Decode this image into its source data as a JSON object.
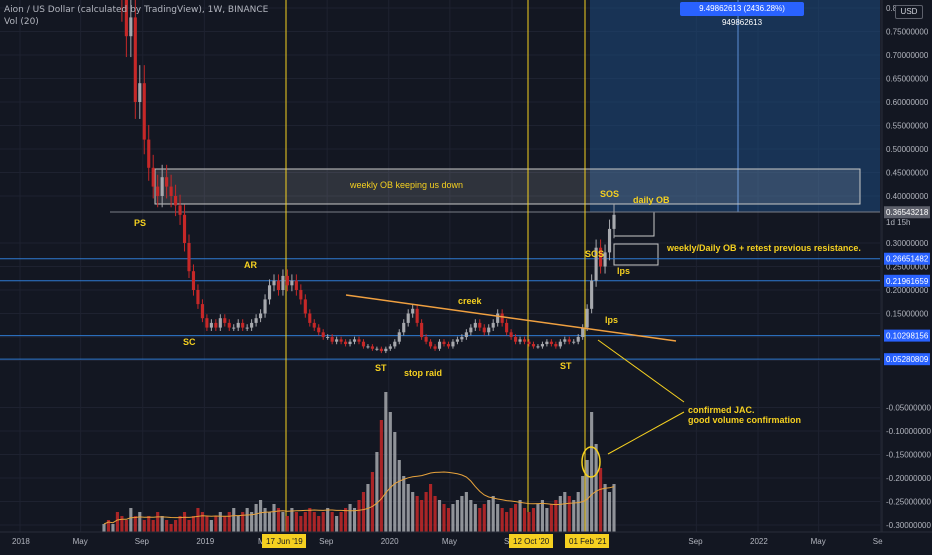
{
  "header": {
    "title": "Aion / US Dollar (calculated by TradingView), 1W, BINANCE",
    "indicator": "Vol (20)",
    "currency_badge": "USD"
  },
  "measure_badge": "9.49862613 (2436.28%) 949862613",
  "colors": {
    "background": "#131722",
    "grid": "#1e2230",
    "up": "#a7a9ae",
    "down": "#c62828",
    "vertical_line": "#f5d020",
    "horizontal_line": "#2e7ad1",
    "trendline": "#f0a040",
    "annotation_text": "#f5d020",
    "zone_fill": "#1e4a80",
    "ma_line": "#e8a33c"
  },
  "chart_data": {
    "type": "candlestick",
    "title": "Aion / US Dollar (calculated by TradingView), 1W, BINANCE",
    "y_axis": {
      "ticks": [
        "0.8",
        "0.75000000",
        "0.70000000",
        "0.65000000",
        "0.60000000",
        "0.55000000",
        "0.50000000",
        "0.45000000",
        "0.40000000",
        "0.30000000",
        "0.25000000",
        "0.20000000",
        "0.15000000",
        "0.10000000",
        "0.05000000",
        "-0.05000000",
        "-0.10000000",
        "-0.15000000",
        "-0.20000000",
        "-0.25000000",
        "-0.30000000"
      ],
      "tick_values": [
        0.8,
        0.75,
        0.7,
        0.65,
        0.6,
        0.55,
        0.5,
        0.45,
        0.4,
        0.3,
        0.25,
        0.2,
        0.15,
        0.1,
        0.05,
        -0.05,
        -0.1,
        -0.15,
        -0.2,
        -0.25,
        -0.3
      ]
    },
    "x_axis": {
      "tick_labels": [
        "2018",
        "May",
        "Sep",
        "2019",
        "Sep",
        "2020",
        "May",
        "Sep",
        "Sep",
        "2022",
        "May",
        "Se"
      ],
      "tick_dates": [
        "2018-01-01",
        "2018-05-01",
        "2018-09-01",
        "2019-01-01",
        "2019-09-01",
        "2020-01-01",
        "2020-05-01",
        "2020-09-01",
        "2021-09-01",
        "2022-01-01",
        "2022-05-01",
        "2022-09-01"
      ],
      "partial_labels": [
        "May"
      ],
      "highlighted_dates": [
        "17 Jun '19",
        "12 Oct '20",
        "01 Feb '21"
      ]
    },
    "price_labels": [
      "0.36543218",
      "0.26651482",
      "0.21961659",
      "0.10298156",
      "0.05280809"
    ],
    "price_label_values": [
      0.36543218,
      0.26651482,
      0.21961659,
      0.10298156,
      0.05280809
    ],
    "countdown": "1d 15h",
    "price_series": [
      0.98,
      0.92,
      0.94,
      0.88,
      0.82,
      0.74,
      0.78,
      0.6,
      0.64,
      0.52,
      0.46,
      0.42,
      0.4,
      0.44,
      0.42,
      0.4,
      0.38,
      0.36,
      0.3,
      0.24,
      0.2,
      0.17,
      0.14,
      0.12,
      0.13,
      0.12,
      0.14,
      0.13,
      0.12,
      0.12,
      0.13,
      0.12,
      0.12,
      0.13,
      0.14,
      0.15,
      0.18,
      0.21,
      0.22,
      0.2,
      0.23,
      0.21,
      0.22,
      0.2,
      0.18,
      0.15,
      0.13,
      0.12,
      0.11,
      0.1,
      0.1,
      0.09,
      0.095,
      0.09,
      0.085,
      0.09,
      0.095,
      0.09,
      0.08,
      0.08,
      0.075,
      0.075,
      0.07,
      0.075,
      0.08,
      0.09,
      0.11,
      0.13,
      0.15,
      0.16,
      0.13,
      0.1,
      0.09,
      0.08,
      0.075,
      0.09,
      0.085,
      0.08,
      0.09,
      0.095,
      0.1,
      0.11,
      0.12,
      0.13,
      0.12,
      0.11,
      0.12,
      0.13,
      0.15,
      0.13,
      0.11,
      0.1,
      0.09,
      0.095,
      0.09,
      0.085,
      0.08,
      0.08,
      0.085,
      0.09,
      0.085,
      0.08,
      0.09,
      0.095,
      0.09,
      0.09,
      0.1,
      0.12,
      0.16,
      0.22,
      0.29,
      0.25,
      0.28,
      0.33,
      0.36
    ],
    "volume_series": [
      0.02,
      0.03,
      0.02,
      0.05,
      0.04,
      0.03,
      0.06,
      0.04,
      0.05,
      0.03,
      0.04,
      0.03,
      0.05,
      0.04,
      0.03,
      0.02,
      0.03,
      0.04,
      0.05,
      0.03,
      0.04,
      0.06,
      0.05,
      0.04,
      0.03,
      0.04,
      0.05,
      0.04,
      0.05,
      0.06,
      0.04,
      0.05,
      0.06,
      0.05,
      0.07,
      0.08,
      0.06,
      0.05,
      0.07,
      0.06,
      0.05,
      0.04,
      0.06,
      0.05,
      0.04,
      0.05,
      0.06,
      0.05,
      0.04,
      0.05,
      0.06,
      0.05,
      0.04,
      0.05,
      0.06,
      0.07,
      0.06,
      0.08,
      0.1,
      0.12,
      0.15,
      0.2,
      0.28,
      0.35,
      0.3,
      0.25,
      0.18,
      0.14,
      0.12,
      0.1,
      0.09,
      0.08,
      0.1,
      0.12,
      0.09,
      0.08,
      0.07,
      0.06,
      0.07,
      0.08,
      0.09,
      0.1,
      0.08,
      0.07,
      0.06,
      0.07,
      0.08,
      0.09,
      0.07,
      0.06,
      0.05,
      0.06,
      0.07,
      0.08,
      0.06,
      0.05,
      0.06,
      0.07,
      0.08,
      0.06,
      0.07,
      0.08,
      0.09,
      0.1,
      0.09,
      0.08,
      0.1,
      0.14,
      0.18,
      0.3,
      0.22,
      0.16,
      0.12,
      0.1,
      0.12
    ],
    "horizontal_levels": [
      0.26651482,
      0.21961659,
      0.10298156,
      0.05280809
    ],
    "annotations": [
      {
        "text": "PS"
      },
      {
        "text": "SC"
      },
      {
        "text": "AR"
      },
      {
        "text": "ST"
      },
      {
        "text": "stop raid"
      },
      {
        "text": "creek"
      },
      {
        "text": "ST"
      },
      {
        "text": "SOS"
      },
      {
        "text": "SOS"
      },
      {
        "text": "lps"
      },
      {
        "text": "lps"
      },
      {
        "text": "daily OB"
      },
      {
        "text": "weekly/Daily OB + retest previous resistance."
      },
      {
        "text": "weekly OB keeping us down"
      },
      {
        "text": "confirmed JAC."
      },
      {
        "text": "good volume confirmation"
      }
    ]
  }
}
